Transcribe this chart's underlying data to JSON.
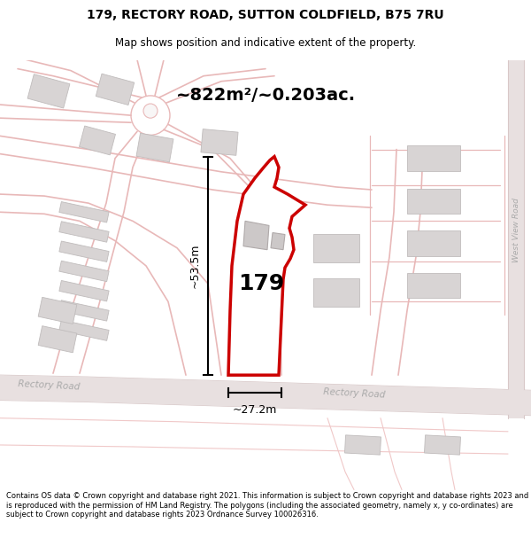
{
  "title_line1": "179, RECTORY ROAD, SUTTON COLDFIELD, B75 7RU",
  "title_line2": "Map shows position and indicative extent of the property.",
  "area_text": "~822m²/~0.203ac.",
  "property_number": "179",
  "dim_height": "~53.5m",
  "dim_width": "~27.2m",
  "road_label_main": "Rectory Road",
  "road_label_left": "Rectory Road",
  "west_view_road": "West View Road",
  "copyright_text": "Contains OS data © Crown copyright and database right 2021. This information is subject to Crown copyright and database rights 2023 and is reproduced with the permission of HM Land Registry. The polygons (including the associated geometry, namely x, y co-ordinates) are subject to Crown copyright and database rights 2023 Ordnance Survey 100026316.",
  "bg_color": "#ffffff",
  "map_bg": "#f8f6f6",
  "road_fill": "#e8e0e0",
  "road_line": "#d8c8c8",
  "pink_line": "#e8b8b8",
  "pink_line2": "#f0c8c8",
  "building_fill": "#d8d4d4",
  "building_edge": "#c0bcbc",
  "property_fill": "#ffffff",
  "property_edge": "#cc0000",
  "west_road_fill": "#e0dada",
  "dim_color": "#000000",
  "text_color": "#000000",
  "road_text_color": "#aaaaaa"
}
